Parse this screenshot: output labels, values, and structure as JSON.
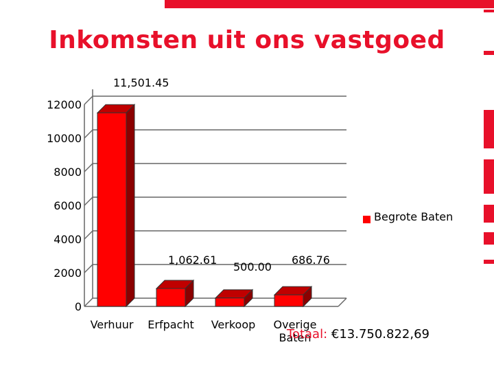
{
  "slide": {
    "title": "Inkomsten uit ons vastgoed",
    "accent_color": "#e8102a",
    "total_label": "Totaal:",
    "total_value": "€13.750.822,69"
  },
  "chart_data": {
    "type": "bar",
    "title": "",
    "xlabel": "",
    "ylabel": "",
    "categories": [
      "Verhuur",
      "Erfpacht",
      "Verkoop",
      "Overige Baten"
    ],
    "series": [
      {
        "name": "Begrote Baten",
        "values": [
          11501.45,
          1062.61,
          500.0,
          686.76
        ],
        "value_labels": [
          "11,501.45",
          "1,062.61",
          "500.00",
          "686.76"
        ],
        "color": "#ff0000"
      }
    ],
    "ylim": [
      0,
      12000
    ],
    "y_ticks": [
      "0",
      "2000",
      "4000",
      "6000",
      "8000",
      "10000",
      "12000"
    ],
    "grid": true,
    "legend": "right",
    "style": "3d-bar"
  }
}
